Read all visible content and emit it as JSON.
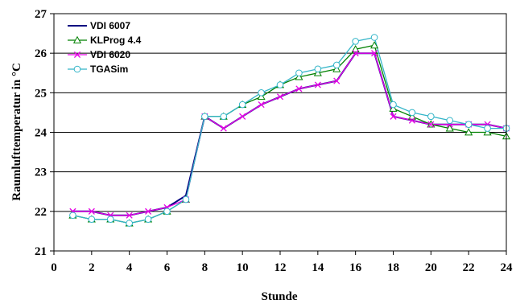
{
  "chart_data": {
    "type": "line",
    "title": "",
    "xlabel": "Stunde",
    "ylabel": "Raumlufttemperatur in °C",
    "xlim": [
      0,
      24
    ],
    "ylim": [
      21,
      27
    ],
    "xticks": [
      0,
      2,
      4,
      6,
      8,
      10,
      12,
      14,
      16,
      18,
      20,
      22,
      24
    ],
    "yticks": [
      21,
      22,
      23,
      24,
      25,
      26,
      27
    ],
    "grid": "horizontal",
    "legend_position": "top-left",
    "x": [
      1,
      2,
      3,
      4,
      5,
      6,
      7,
      8,
      9,
      10,
      11,
      12,
      13,
      14,
      15,
      16,
      17,
      18,
      19,
      20,
      21,
      22,
      23,
      24
    ],
    "series": [
      {
        "name": "VDI 6007",
        "color": "#000080",
        "marker": "none",
        "values": [
          22.0,
          22.0,
          21.9,
          21.9,
          22.0,
          22.1,
          22.4,
          24.4,
          24.1,
          24.4,
          24.7,
          24.9,
          25.1,
          25.2,
          25.3,
          26.0,
          26.0,
          24.4,
          24.3,
          24.2,
          24.2,
          24.2,
          24.2,
          24.1
        ]
      },
      {
        "name": "KLProg 4.4",
        "color": "#008000",
        "marker": "triangle",
        "values": [
          21.9,
          21.8,
          21.8,
          21.7,
          21.8,
          22.0,
          22.3,
          24.4,
          24.4,
          24.7,
          24.9,
          25.2,
          25.4,
          25.5,
          25.6,
          26.1,
          26.2,
          24.6,
          24.4,
          24.2,
          24.1,
          24.0,
          24.0,
          23.9
        ]
      },
      {
        "name": "VDI 6020",
        "color": "#e600e6",
        "marker": "x",
        "values": [
          22.0,
          22.0,
          21.9,
          21.9,
          22.0,
          22.1,
          22.3,
          24.4,
          24.1,
          24.4,
          24.7,
          24.9,
          25.1,
          25.2,
          25.3,
          26.0,
          26.0,
          24.4,
          24.3,
          24.2,
          24.2,
          24.2,
          24.2,
          24.1
        ]
      },
      {
        "name": "TGASim",
        "color": "#33b5c8",
        "marker": "circle",
        "values": [
          21.9,
          21.8,
          21.8,
          21.7,
          21.8,
          22.0,
          22.3,
          24.4,
          24.4,
          24.7,
          25.0,
          25.2,
          25.5,
          25.6,
          25.7,
          26.3,
          26.4,
          24.7,
          24.5,
          24.4,
          24.3,
          24.2,
          24.1,
          24.1
        ]
      }
    ]
  }
}
